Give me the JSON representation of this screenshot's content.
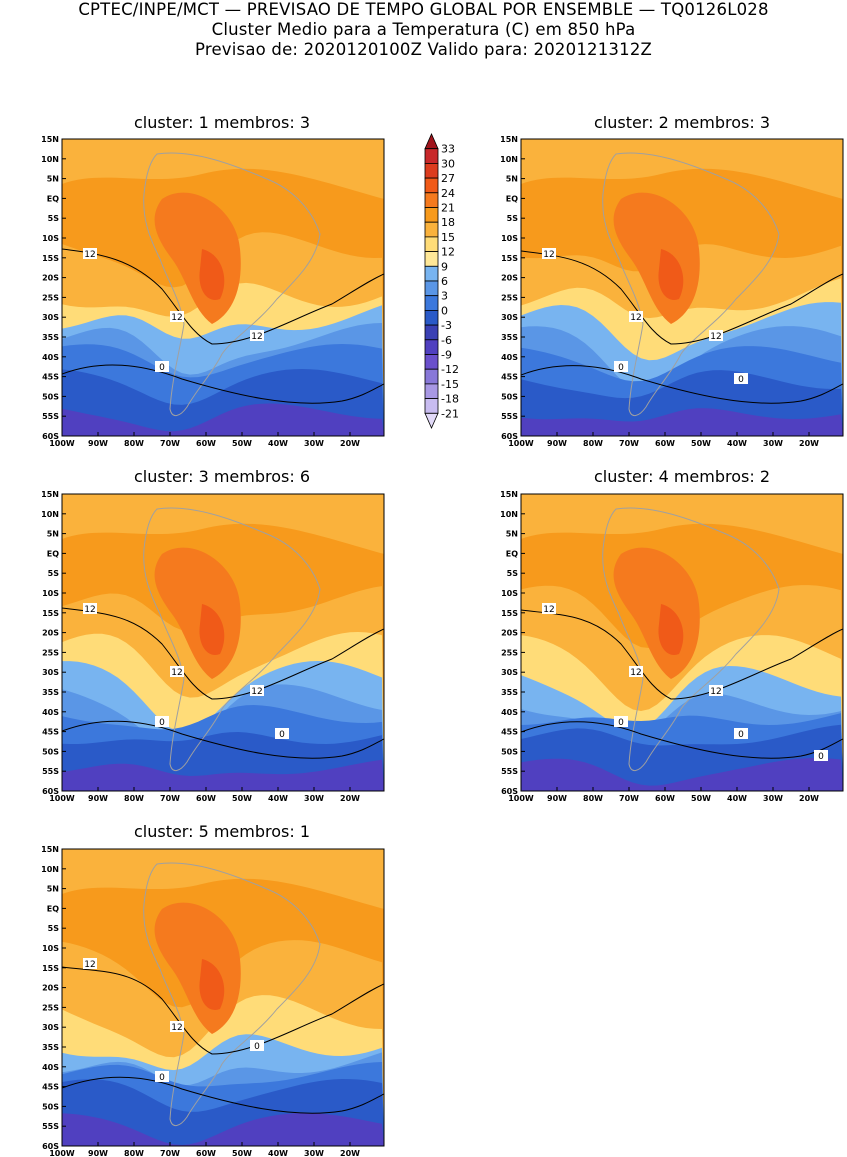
{
  "header": {
    "line1": "CPTEC/INPE/MCT — PREVISAO DE TEMPO GLOBAL POR ENSEMBLE — TQ0126L028",
    "line2": "Cluster Medio para a Temperatura (C) em 850 hPa",
    "line3": "Previsao de: 2020120100Z   Valido para: 2020121312Z"
  },
  "axes": {
    "lat_labels": [
      "15N",
      "10N",
      "5N",
      "EQ",
      "5S",
      "10S",
      "15S",
      "20S",
      "25S",
      "30S",
      "35S",
      "40S",
      "45S",
      "50S",
      "55S",
      "60S"
    ],
    "lon_labels": [
      "100W",
      "90W",
      "80W",
      "70W",
      "60W",
      "50W",
      "40W",
      "30W",
      "20W"
    ]
  },
  "colorbar": {
    "levels": [
      "33",
      "30",
      "27",
      "24",
      "21",
      "18",
      "15",
      "12",
      "9",
      "6",
      "3",
      "0",
      "-3",
      "-6",
      "-9",
      "-12",
      "-15",
      "-18",
      "-21"
    ],
    "colors": [
      "#a0141c",
      "#c8282a",
      "#dc3c1e",
      "#f05a18",
      "#f57a1e",
      "#f79a1c",
      "#fab23c",
      "#ffdc78",
      "#ffe898",
      "#78b4f0",
      "#5a96e6",
      "#3c78dc",
      "#2a5ac8",
      "#3a40b4",
      "#5040c0",
      "#6a50cc",
      "#8878d8",
      "#a898e4",
      "#c8bcf0",
      "#e2daf8"
    ]
  },
  "panels": [
    {
      "title": "cluster: 1   membros: 3",
      "contour_labels": [
        "12",
        "12",
        "12",
        "0"
      ]
    },
    {
      "title": "cluster: 2   membros: 3",
      "contour_labels": [
        "12",
        "12",
        "12",
        "0",
        "0"
      ]
    },
    {
      "title": "cluster: 3   membros: 6",
      "contour_labels": [
        "12",
        "12",
        "12",
        "0",
        "0"
      ]
    },
    {
      "title": "cluster: 4   membros: 2",
      "contour_labels": [
        "12",
        "12",
        "12",
        "0",
        "0",
        "0"
      ]
    },
    {
      "title": "cluster: 5   membros: 1",
      "contour_labels": [
        "12",
        "12",
        "0",
        "0"
      ]
    }
  ]
}
